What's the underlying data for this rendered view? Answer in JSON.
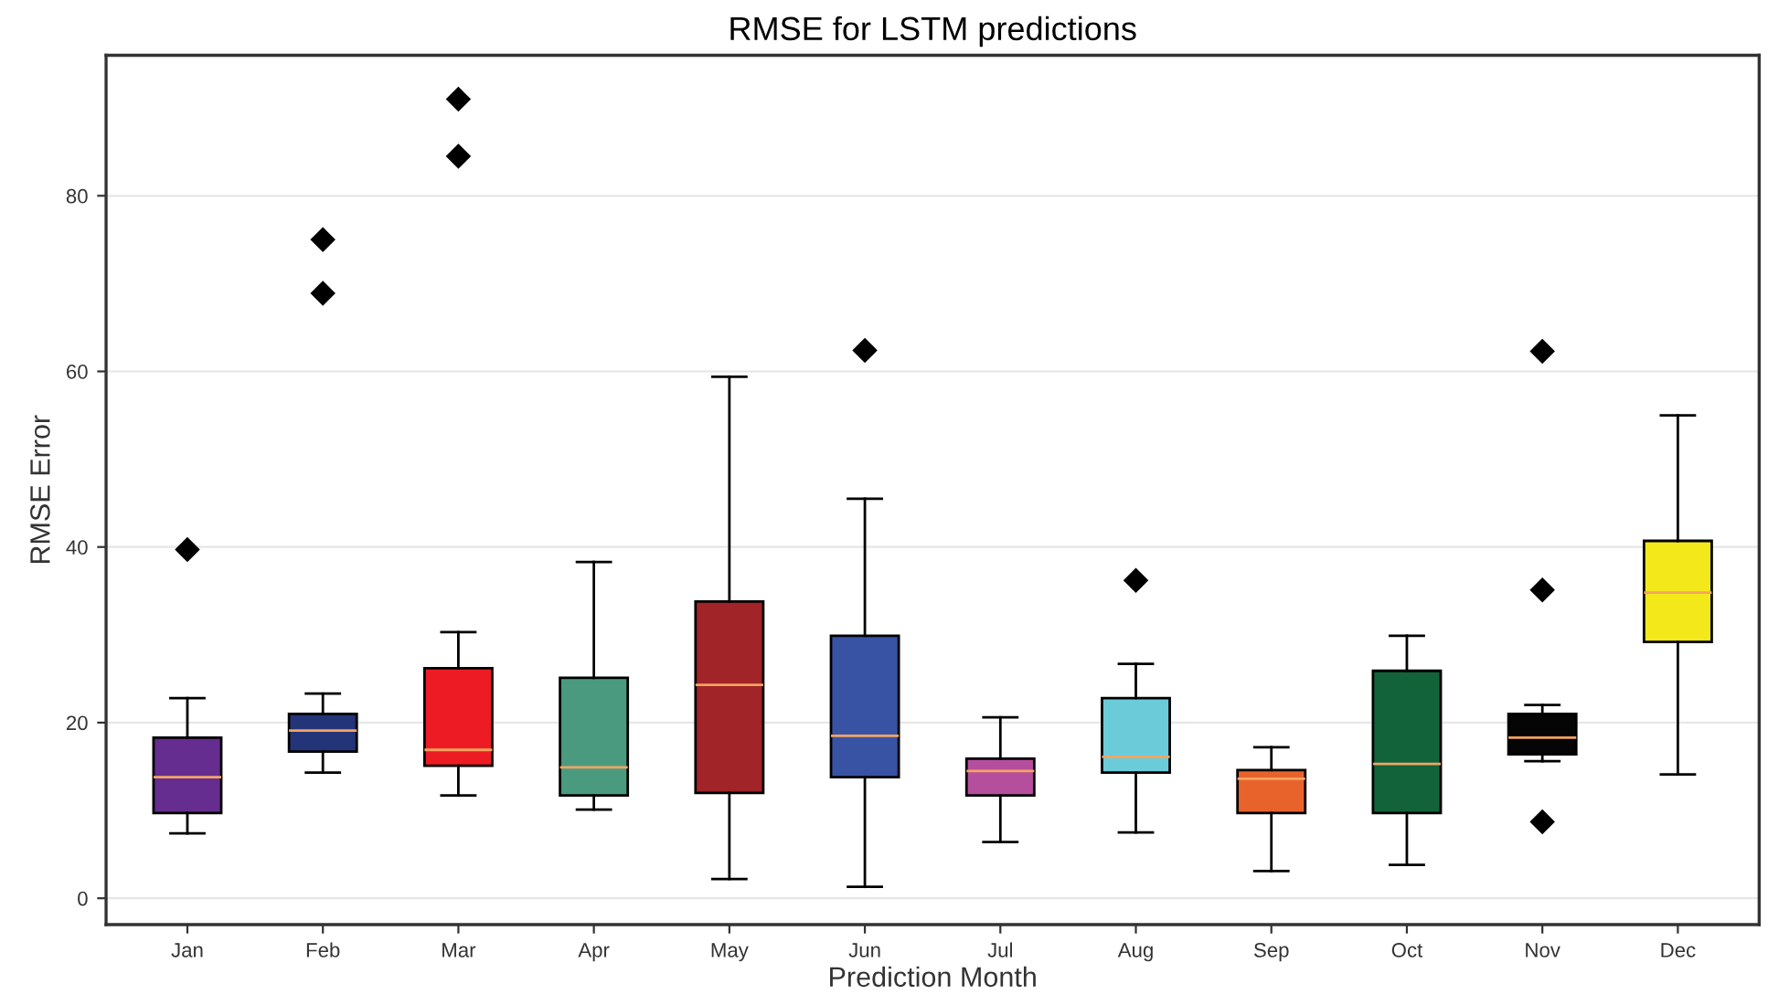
{
  "chart_data": {
    "type": "box",
    "title": "RMSE for LSTM predictions",
    "xlabel": "Prediction Month",
    "ylabel": "RMSE Error",
    "categories": [
      "Jan",
      "Feb",
      "Mar",
      "Apr",
      "May",
      "Jun",
      "Jul",
      "Aug",
      "Sep",
      "Oct",
      "Nov",
      "Dec"
    ],
    "colors": [
      "#652d90",
      "#233479",
      "#ed1c24",
      "#4a9a80",
      "#a02428",
      "#3853a4",
      "#b64e9e",
      "#6bcbd9",
      "#e8632c",
      "#12633a",
      "#050505",
      "#f2e81a"
    ],
    "boxes": [
      {
        "low": 7.4,
        "q1": 9.7,
        "median": 13.8,
        "q3": 18.3,
        "high": 22.8,
        "outliers": [
          39.7
        ]
      },
      {
        "low": 14.3,
        "q1": 16.7,
        "median": 19.1,
        "q3": 21.0,
        "high": 23.3,
        "outliers": [
          75.0,
          68.9
        ]
      },
      {
        "low": 11.7,
        "q1": 15.1,
        "median": 16.9,
        "q3": 26.2,
        "high": 30.3,
        "outliers": [
          91.0,
          84.5
        ]
      },
      {
        "low": 10.1,
        "q1": 11.7,
        "median": 14.9,
        "q3": 25.1,
        "high": 38.3
      },
      {
        "low": 2.2,
        "q1": 12.0,
        "median": 24.3,
        "q3": 33.8,
        "high": 59.4
      },
      {
        "low": 1.3,
        "q1": 13.8,
        "median": 18.5,
        "q3": 29.9,
        "high": 45.5,
        "outliers": [
          62.4
        ]
      },
      {
        "low": 6.4,
        "q1": 11.7,
        "median": 14.5,
        "q3": 15.9,
        "high": 20.6
      },
      {
        "low": 7.5,
        "q1": 14.3,
        "median": 16.1,
        "q3": 22.8,
        "high": 26.7,
        "outliers": [
          36.2
        ]
      },
      {
        "low": 3.1,
        "q1": 9.7,
        "median": 13.6,
        "q3": 14.6,
        "high": 17.2
      },
      {
        "low": 3.8,
        "q1": 9.7,
        "median": 15.3,
        "q3": 25.9,
        "high": 29.9
      },
      {
        "low": 15.6,
        "q1": 16.4,
        "median": 18.3,
        "q3": 21.0,
        "high": 22.0,
        "outliers": [
          62.3,
          35.1,
          8.7
        ]
      },
      {
        "low": 14.1,
        "q1": 29.2,
        "median": 34.8,
        "q3": 40.7,
        "high": 55.0
      }
    ],
    "ylim": [
      -3,
      96
    ],
    "yticks": [
      0,
      20,
      40,
      60,
      80
    ],
    "grid": "y",
    "marker": "diamond"
  }
}
